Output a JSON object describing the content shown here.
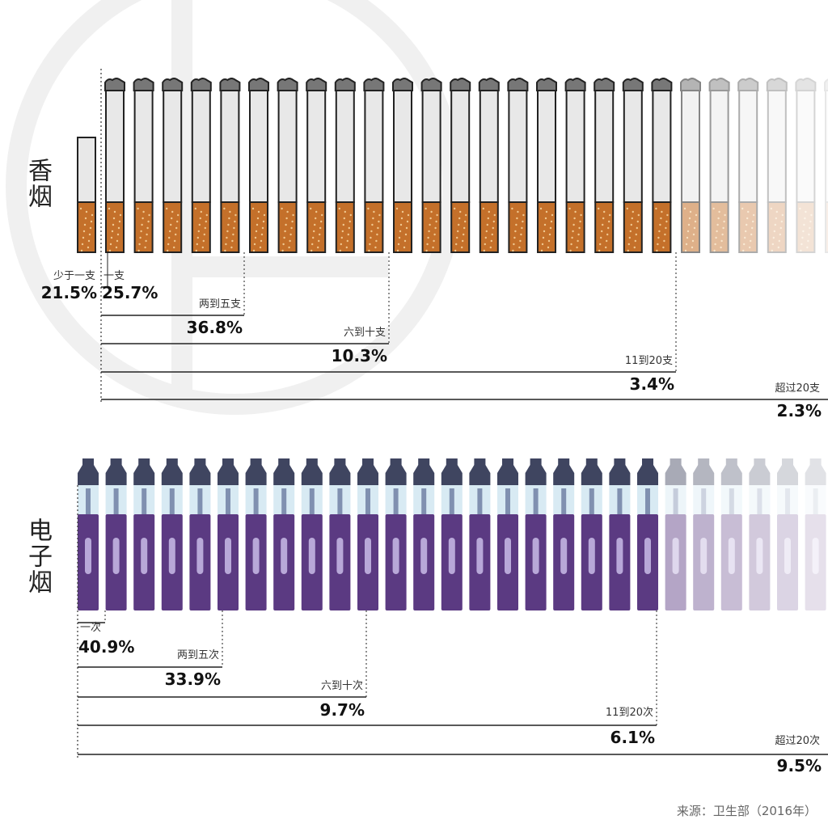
{
  "sections": [
    {
      "label": "香烟",
      "groups": [
        {
          "label": "少于一支",
          "percent": "21.5%"
        },
        {
          "label": "一支",
          "percent": "25.7%"
        },
        {
          "label": "两到五支",
          "percent": "36.8%"
        },
        {
          "label": "六到十支",
          "percent": "10.3%"
        },
        {
          "label": "11到20支",
          "percent": "3.4%"
        },
        {
          "label": "超过20支",
          "percent": "2.3%"
        }
      ]
    },
    {
      "label": "电子烟",
      "groups": [
        {
          "label": "一次",
          "percent": "40.9%"
        },
        {
          "label": "两到五次",
          "percent": "33.9%"
        },
        {
          "label": "六到十次",
          "percent": "9.7%"
        },
        {
          "label": "11到20次",
          "percent": "6.1%"
        },
        {
          "label": "超过20次",
          "percent": "9.5%"
        }
      ]
    }
  ],
  "source": "来源：卫生部（2016年）"
}
